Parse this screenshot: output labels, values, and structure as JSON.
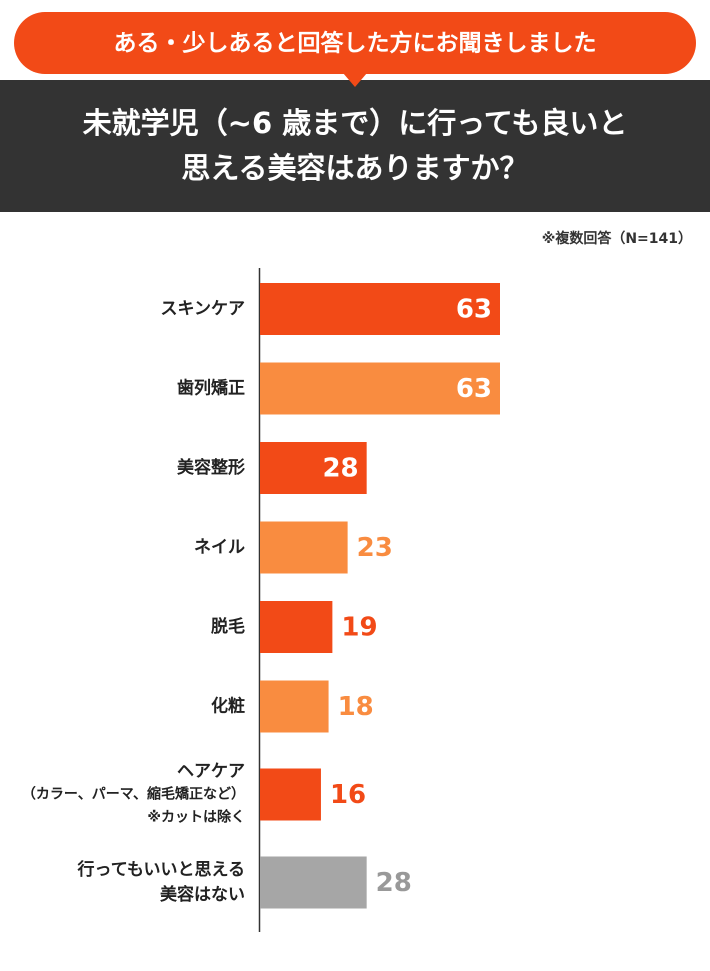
{
  "chart_data": {
    "type": "bar",
    "banner": "ある・少しあると回答した方にお聞きしました",
    "title": [
      "未就学児（~6 歳まで）に行っても良いと",
      "思える美容はありますか？"
    ],
    "note": "※複数回答（N=141）",
    "categories": [
      "スキンケア",
      "歯列矯正",
      "美容整形",
      "ネイル",
      "脱毛",
      "化粧",
      "ヘアケア\n（カラー、パーマ、縮毛矯正など）\n※カットは除く",
      "行ってもいいと思える\n美容はない"
    ],
    "values": [
      63,
      63,
      28,
      23,
      19,
      18,
      16,
      28
    ],
    "colors": [
      "#f24a17",
      "#f98c40",
      "#f24a17",
      "#f98c40",
      "#f24a17",
      "#f98c40",
      "#f24a17",
      "#a6a6a6"
    ],
    "label_position": [
      "inside",
      "inside",
      "inside",
      "outside",
      "outside",
      "outside",
      "outside",
      "outside"
    ]
  }
}
